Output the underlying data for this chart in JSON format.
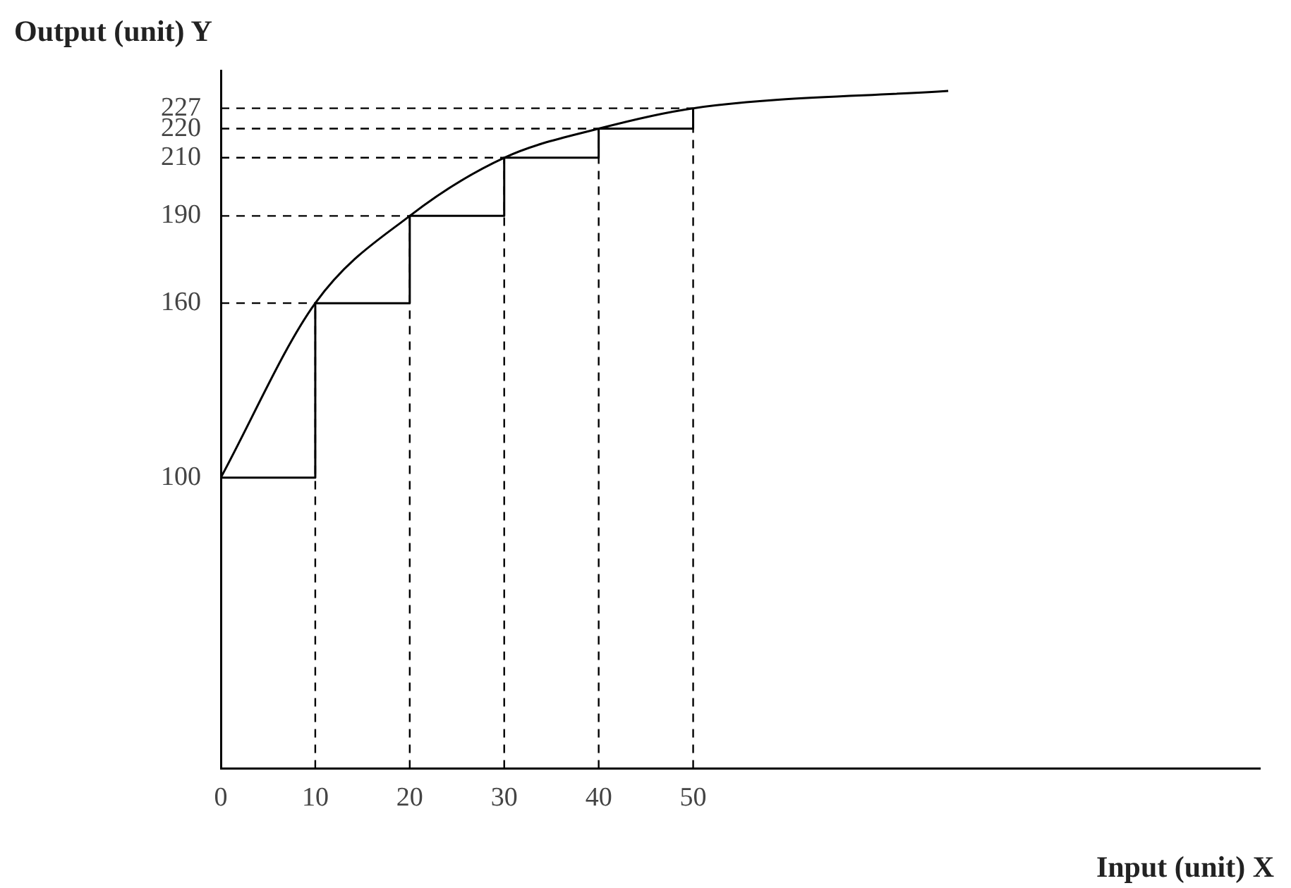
{
  "chart_data": {
    "type": "line",
    "xlabel": "Input (unit) X",
    "ylabel": "Output (unit) Y",
    "xlim": [
      0,
      110
    ],
    "ylim": [
      0,
      240
    ],
    "xticks": [
      0,
      10,
      20,
      30,
      40,
      50
    ],
    "yticks": [
      100,
      160,
      190,
      210,
      220,
      227
    ],
    "grid": false,
    "legend": false,
    "marker": "none",
    "series": [
      {
        "type": "line",
        "color": "#000000",
        "x": [
          0,
          10,
          20,
          30,
          40,
          50,
          77
        ],
        "values": [
          100,
          160,
          190,
          210,
          220,
          227,
          233
        ]
      },
      {
        "type": "step",
        "color": "#000000",
        "x": [
          0,
          10,
          20,
          30,
          40,
          50
        ],
        "values": [
          100,
          160,
          190,
          210,
          220,
          227
        ]
      }
    ],
    "ref_lines": [
      {
        "axis": "y",
        "value": 160,
        "line_style": "dashed"
      },
      {
        "axis": "y",
        "value": 190,
        "line_style": "dashed"
      },
      {
        "axis": "y",
        "value": 210,
        "line_style": "dashed"
      },
      {
        "axis": "y",
        "value": 220,
        "line_style": "dashed"
      },
      {
        "axis": "y",
        "value": 227,
        "line_style": "dashed"
      },
      {
        "axis": "x",
        "value": 10,
        "line_style": "dashed"
      },
      {
        "axis": "x",
        "value": 20,
        "line_style": "dashed"
      },
      {
        "axis": "x",
        "value": 30,
        "line_style": "dashed"
      },
      {
        "axis": "x",
        "value": 40,
        "line_style": "dashed"
      },
      {
        "axis": "x",
        "value": 50,
        "line_style": "dashed"
      }
    ]
  }
}
